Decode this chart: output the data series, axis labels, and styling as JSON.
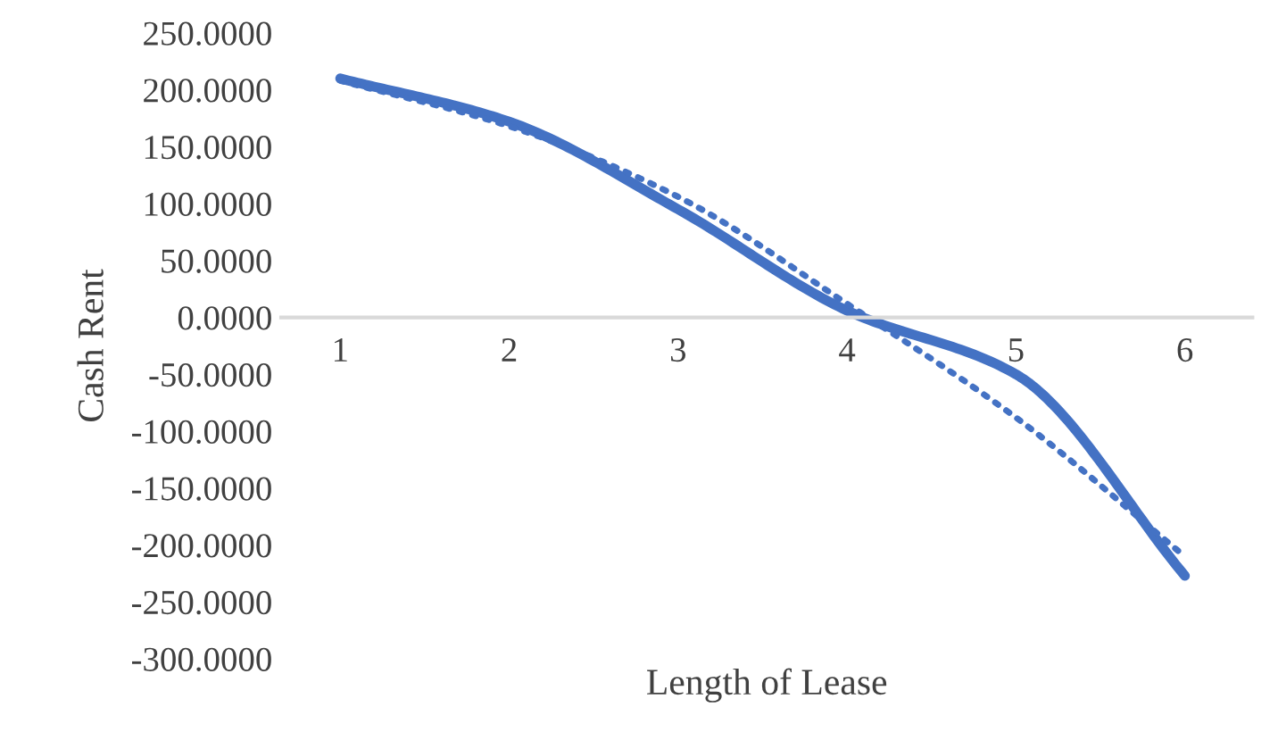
{
  "chart_data": {
    "type": "line",
    "xlabel": "Length of Lease",
    "ylabel": "Cash Rent",
    "categories": [
      "1",
      "2",
      "3",
      "4",
      "5",
      "6"
    ],
    "series": [
      {
        "color": "#4472c4",
        "values": [
          210,
          172,
          95,
          6,
          -50,
          -227
        ],
        "line_style": "solid"
      },
      {
        "color": "#4472c4",
        "values": [
          208,
          168,
          106,
          12,
          -88,
          -210
        ],
        "line_style": "dotted"
      }
    ],
    "ylim": [
      -300,
      250
    ],
    "yticks": [
      {
        "value": -300,
        "label": "-300.0000"
      },
      {
        "value": -250,
        "label": "-250.0000"
      },
      {
        "value": -200,
        "label": "-200.0000"
      },
      {
        "value": -150,
        "label": "-150.0000"
      },
      {
        "value": -100,
        "label": "-100.0000"
      },
      {
        "value": -50,
        "label": "-50.0000"
      },
      {
        "value": 0,
        "label": "0.0000"
      },
      {
        "value": 50,
        "label": "50.0000"
      },
      {
        "value": 100,
        "label": "100.0000"
      },
      {
        "value": 150,
        "label": "150.0000"
      },
      {
        "value": 200,
        "label": "200.0000"
      },
      {
        "value": 250,
        "label": "250.0000"
      }
    ],
    "grid": false,
    "legend": false,
    "marker": "none"
  }
}
